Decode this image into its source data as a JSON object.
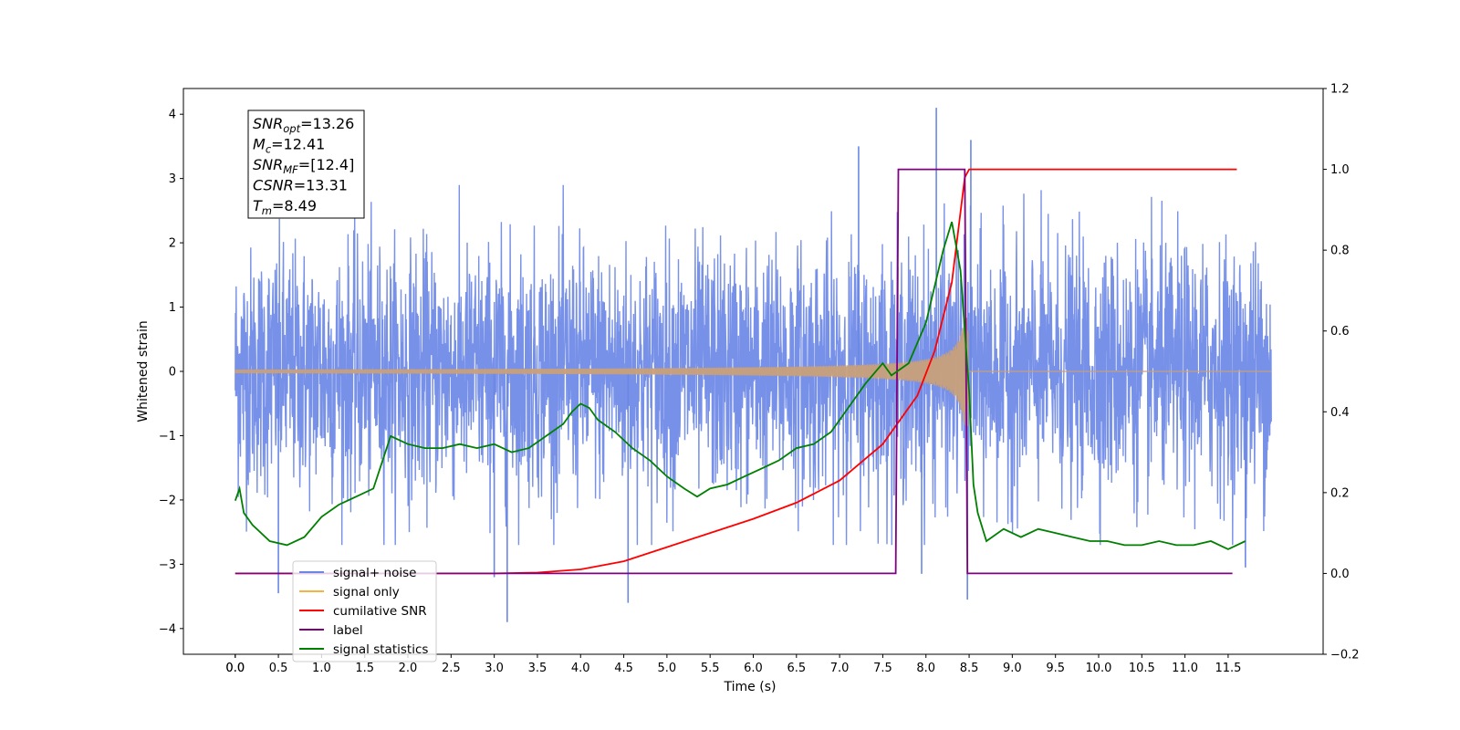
{
  "chart_data": {
    "type": "line",
    "xlabel": "Time (s)",
    "ylabel_left": "Whitened strain",
    "ylabel_right": "",
    "xlim": [
      -0.6,
      12.6
    ],
    "ylim_left": [
      -4.4,
      4.4
    ],
    "ylim_right": [
      -0.2,
      1.2
    ],
    "x_ticks": [
      "0.0",
      "0.0",
      "0.5",
      "1.0",
      "1.5",
      "2.0",
      "2.5",
      "3.0",
      "3.5",
      "4.0",
      "4.5",
      "5.0",
      "5.5",
      "6.0",
      "6.5",
      "7.0",
      "7.5",
      "8.0",
      "8.5",
      "9.0",
      "9.5",
      "10.0",
      "10.5",
      "11.0",
      "11.5"
    ],
    "x_tick_values": [
      0.0,
      0.0,
      0.5,
      1.0,
      1.5,
      2.0,
      2.5,
      3.0,
      3.5,
      4.0,
      4.5,
      5.0,
      5.5,
      6.0,
      6.5,
      7.0,
      7.5,
      8.0,
      8.5,
      9.0,
      9.5,
      10.0,
      10.5,
      11.0,
      11.5
    ],
    "y_ticks_left": [
      "4",
      "3",
      "2",
      "1",
      "0",
      "−1",
      "−2",
      "−3",
      "−4"
    ],
    "y_tick_values_left": [
      4,
      3,
      2,
      1,
      0,
      -1,
      -2,
      -3,
      -4
    ],
    "y_ticks_right": [
      "1.2",
      "1.0",
      "0.8",
      "0.6",
      "0.4",
      "0.2",
      "0.0",
      "−0.2"
    ],
    "y_tick_values_right": [
      1.2,
      1.0,
      0.8,
      0.6,
      0.4,
      0.2,
      0.0,
      -0.2
    ],
    "annotation": {
      "lines": [
        {
          "name": "SNR",
          "sub": "opt",
          "value": "=13.26"
        },
        {
          "name": "M",
          "sub": "c",
          "value": "=12.41"
        },
        {
          "name": "SNR",
          "sub": "MF",
          "value": "=[12.4]"
        },
        {
          "name": "CSNR",
          "sub": "",
          "value": "=13.31"
        },
        {
          "name": "T",
          "sub": "m",
          "value": "=8.49"
        }
      ]
    },
    "legend": {
      "position": "lower-left",
      "entries": [
        {
          "label": "signal+ noise",
          "color": "#6b87e6"
        },
        {
          "label": "signal only",
          "color": "#f5b342"
        },
        {
          "label": "cumilative SNR",
          "color": "#ff0000"
        },
        {
          "label": "label",
          "color": "#800080"
        },
        {
          "label": "signal statistics",
          "color": "#008000"
        }
      ]
    },
    "series": [
      {
        "name": "signal+ noise",
        "axis": "left",
        "color": "#6b87e6",
        "kind": "noise",
        "x_range": [
          0.0,
          12.0
        ],
        "envelope_typical": 1.6,
        "spikes": [
          [
            8.12,
            4.1
          ],
          [
            8.52,
            3.6
          ],
          [
            7.22,
            3.5
          ],
          [
            3.15,
            -3.9
          ],
          [
            4.55,
            -3.6
          ],
          [
            8.48,
            -3.55
          ],
          [
            0.5,
            -3.45
          ],
          [
            11.7,
            -3.05
          ],
          [
            7.95,
            -3.15
          ],
          [
            3.0,
            -3.2
          ]
        ]
      },
      {
        "name": "signal only",
        "axis": "left",
        "color": "#c8a07a",
        "kind": "chirp",
        "x_range": [
          0.0,
          12.0
        ],
        "merger_time": 8.49,
        "peak_amplitude": 0.85
      },
      {
        "name": "cumilative SNR",
        "axis": "right",
        "color": "#ff0000",
        "x": [
          0.0,
          3.0,
          3.5,
          4.0,
          4.5,
          5.0,
          5.5,
          6.0,
          6.5,
          7.0,
          7.5,
          7.9,
          8.1,
          8.3,
          8.45,
          8.5,
          11.6
        ],
        "y": [
          0.0,
          0.0,
          0.002,
          0.01,
          0.03,
          0.065,
          0.1,
          0.135,
          0.175,
          0.23,
          0.32,
          0.44,
          0.55,
          0.72,
          0.98,
          1.0,
          1.0
        ]
      },
      {
        "name": "label",
        "axis": "right",
        "color": "#800080",
        "x": [
          0.0,
          7.65,
          7.68,
          8.45,
          8.48,
          11.55
        ],
        "y": [
          0.0,
          0.0,
          1.0,
          1.0,
          0.0,
          0.0
        ]
      },
      {
        "name": "signal statistics",
        "axis": "right",
        "color": "#008000",
        "x": [
          0.0,
          0.05,
          0.1,
          0.2,
          0.4,
          0.6,
          0.8,
          1.0,
          1.2,
          1.4,
          1.6,
          1.8,
          2.0,
          2.2,
          2.4,
          2.6,
          2.8,
          3.0,
          3.2,
          3.4,
          3.6,
          3.8,
          3.9,
          4.0,
          4.1,
          4.2,
          4.4,
          4.6,
          4.8,
          5.0,
          5.2,
          5.35,
          5.5,
          5.7,
          5.9,
          6.1,
          6.3,
          6.5,
          6.7,
          6.9,
          7.1,
          7.3,
          7.5,
          7.6,
          7.8,
          8.0,
          8.2,
          8.3,
          8.4,
          8.5,
          8.55,
          8.6,
          8.7,
          8.9,
          9.1,
          9.3,
          9.5,
          9.7,
          9.9,
          10.1,
          10.3,
          10.5,
          10.7,
          10.9,
          11.1,
          11.3,
          11.5,
          11.7
        ],
        "y": [
          0.18,
          0.21,
          0.15,
          0.12,
          0.08,
          0.07,
          0.09,
          0.14,
          0.17,
          0.19,
          0.21,
          0.34,
          0.32,
          0.31,
          0.31,
          0.32,
          0.31,
          0.32,
          0.3,
          0.31,
          0.34,
          0.37,
          0.4,
          0.42,
          0.41,
          0.38,
          0.35,
          0.31,
          0.28,
          0.24,
          0.21,
          0.19,
          0.21,
          0.22,
          0.24,
          0.26,
          0.28,
          0.31,
          0.32,
          0.35,
          0.41,
          0.47,
          0.52,
          0.49,
          0.52,
          0.62,
          0.8,
          0.87,
          0.75,
          0.45,
          0.22,
          0.15,
          0.08,
          0.11,
          0.09,
          0.11,
          0.1,
          0.09,
          0.08,
          0.08,
          0.07,
          0.07,
          0.08,
          0.07,
          0.07,
          0.08,
          0.06,
          0.08
        ]
      }
    ]
  }
}
